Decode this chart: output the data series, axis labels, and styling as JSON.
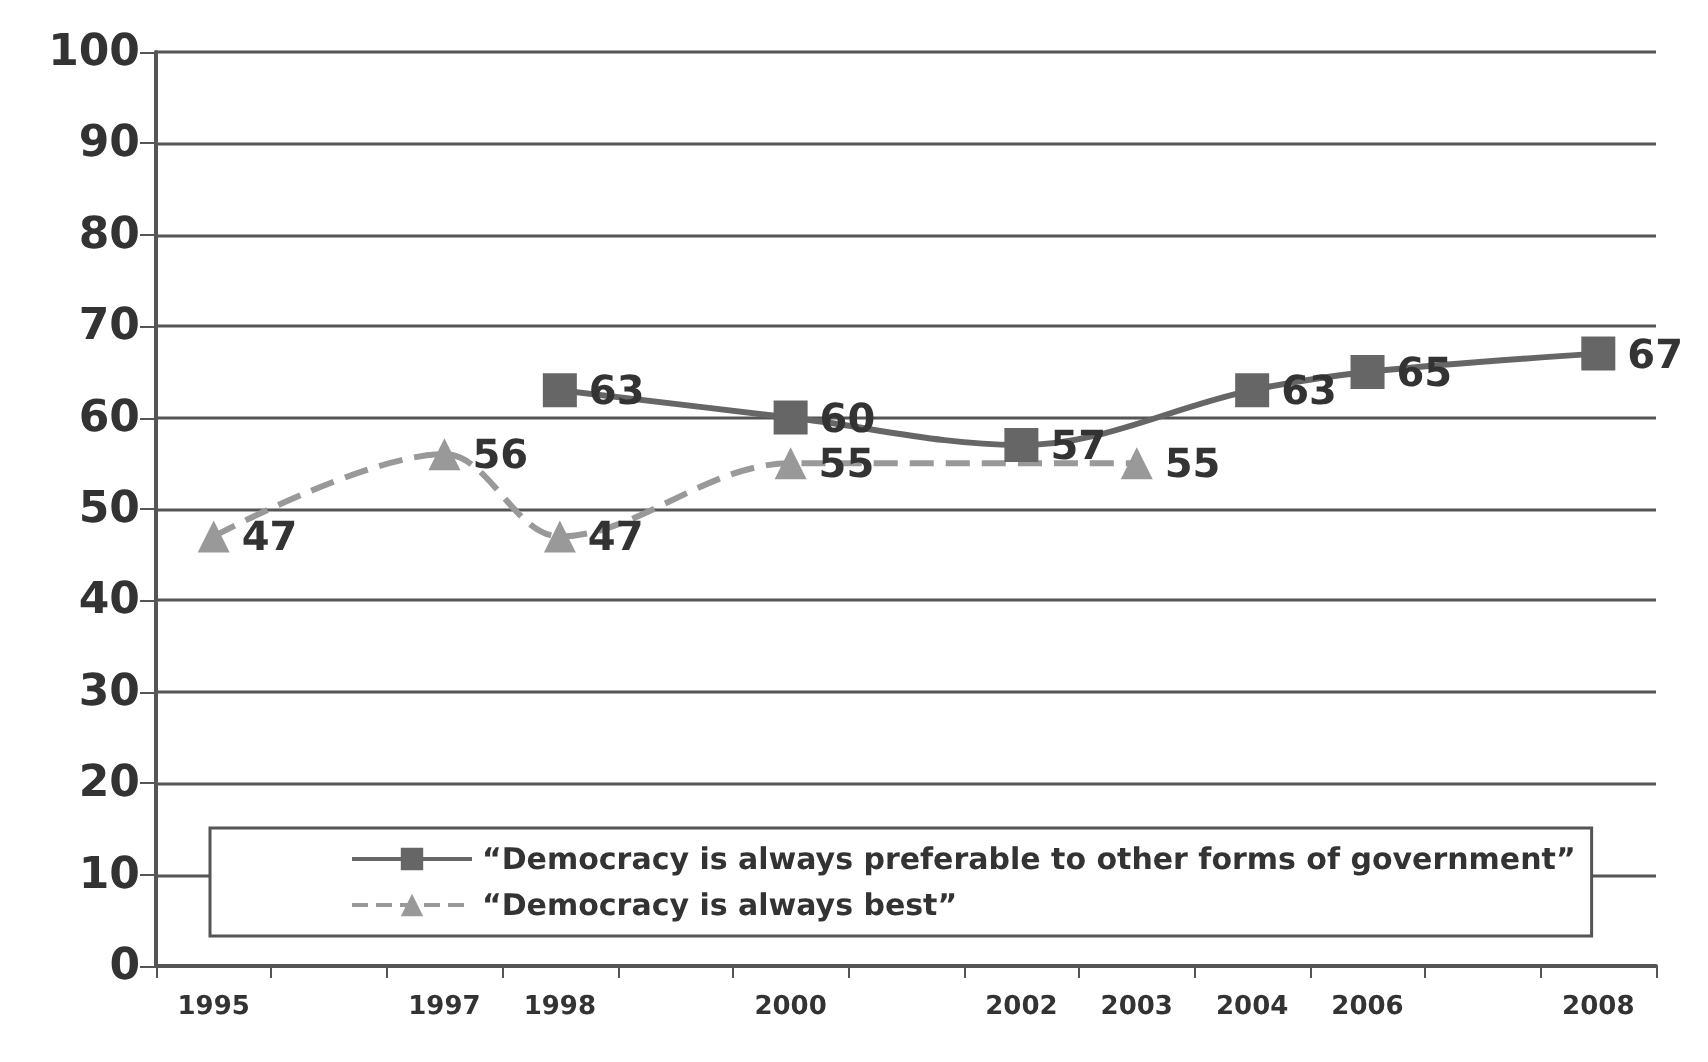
{
  "chart_data": {
    "type": "line",
    "categories": [
      "1995",
      null,
      "1997",
      "1998",
      null,
      "2000",
      null,
      "2002",
      "2003",
      "2004",
      "2006",
      null,
      "2008"
    ],
    "series": [
      {
        "name": "“Democracy is always preferable to other forms of government”",
        "color": "#666666",
        "marker": "square",
        "line_style": "solid",
        "values": [
          null,
          null,
          null,
          63,
          null,
          60,
          null,
          57,
          null,
          63,
          65,
          null,
          67
        ]
      },
      {
        "name": "“Democracy is always best”",
        "color": "#999999",
        "marker": "triangle",
        "line_style": "dashed",
        "values": [
          47,
          null,
          56,
          47,
          null,
          55,
          null,
          null,
          55,
          null,
          null,
          null,
          null
        ]
      }
    ],
    "ylim": [
      0,
      100
    ],
    "yticks": [
      0,
      10,
      20,
      30,
      40,
      50,
      60,
      70,
      80,
      90,
      100
    ],
    "grid": "y",
    "legend": "bottom",
    "data_labels": true
  }
}
